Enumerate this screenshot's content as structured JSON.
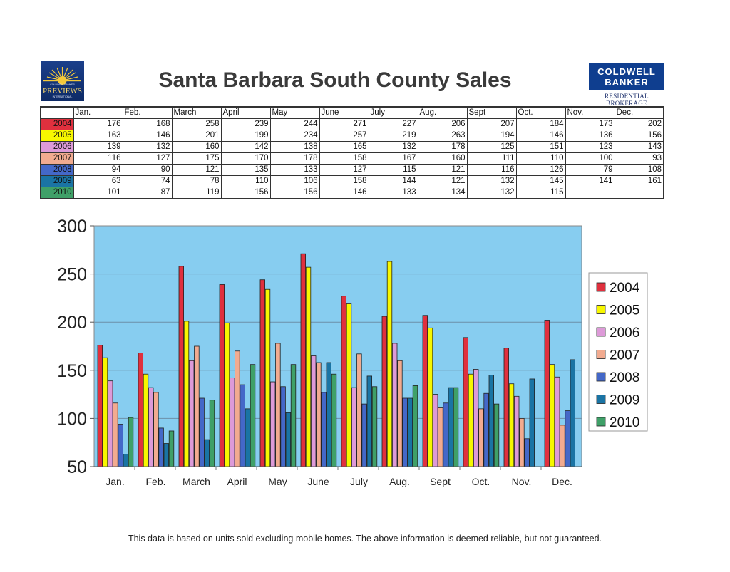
{
  "title": "Santa Barbara South County Sales",
  "logo_left": {
    "line1": "COLDWELL BANKER",
    "line2": "PREVIEWS",
    "line3": "INTERNATIONAL"
  },
  "logo_right": {
    "line1": "COLDWELL",
    "line2": "BANKER",
    "line3": "RESIDENTIAL BROKERAGE"
  },
  "footnote": "This data is based on units sold excluding mobile homes. The above information is deemed reliable, but not guaranteed.",
  "colors": {
    "2004": "#e0303e",
    "2005": "#f7f700",
    "2006": "#dd9ad8",
    "2007": "#f2ab90",
    "2008": "#4468c8",
    "2009": "#1a74a4",
    "2010": "#3fa068",
    "plot_bg": "#87cdf0"
  },
  "chart_data": {
    "type": "bar",
    "title": "Santa Barbara South County Sales",
    "categories": [
      "Jan.",
      "Feb.",
      "March",
      "April",
      "May",
      "June",
      "July",
      "Aug.",
      "Sept",
      "Oct.",
      "Nov.",
      "Dec."
    ],
    "table_headers": [
      "Jan.",
      "Feb.",
      "March",
      "April",
      "May",
      "June",
      "July",
      "Aug.",
      "Sept",
      "Oct.",
      "Nov.",
      "Dec."
    ],
    "series": [
      {
        "name": "2004",
        "values": [
          176,
          168,
          258,
          239,
          244,
          271,
          227,
          206,
          207,
          184,
          173,
          202
        ]
      },
      {
        "name": "2005",
        "values": [
          163,
          146,
          201,
          199,
          234,
          257,
          219,
          263,
          194,
          146,
          136,
          156
        ]
      },
      {
        "name": "2006",
        "values": [
          139,
          132,
          160,
          142,
          138,
          165,
          132,
          178,
          125,
          151,
          123,
          143
        ]
      },
      {
        "name": "2007",
        "values": [
          116,
          127,
          175,
          170,
          178,
          158,
          167,
          160,
          111,
          110,
          100,
          93
        ]
      },
      {
        "name": "2008",
        "values": [
          94,
          90,
          121,
          135,
          133,
          127,
          115,
          121,
          116,
          126,
          79,
          108
        ]
      },
      {
        "name": "2009",
        "values": [
          63,
          74,
          78,
          110,
          106,
          158,
          144,
          121,
          132,
          145,
          141,
          161
        ]
      },
      {
        "name": "2010",
        "values": [
          101,
          87,
          119,
          156,
          156,
          146,
          133,
          134,
          132,
          115,
          null,
          null
        ]
      }
    ],
    "ylim": [
      50,
      300
    ],
    "yticks": [
      50,
      100,
      150,
      200,
      250,
      300
    ],
    "xlabel": "",
    "ylabel": "",
    "grid": true,
    "legend": "right"
  }
}
